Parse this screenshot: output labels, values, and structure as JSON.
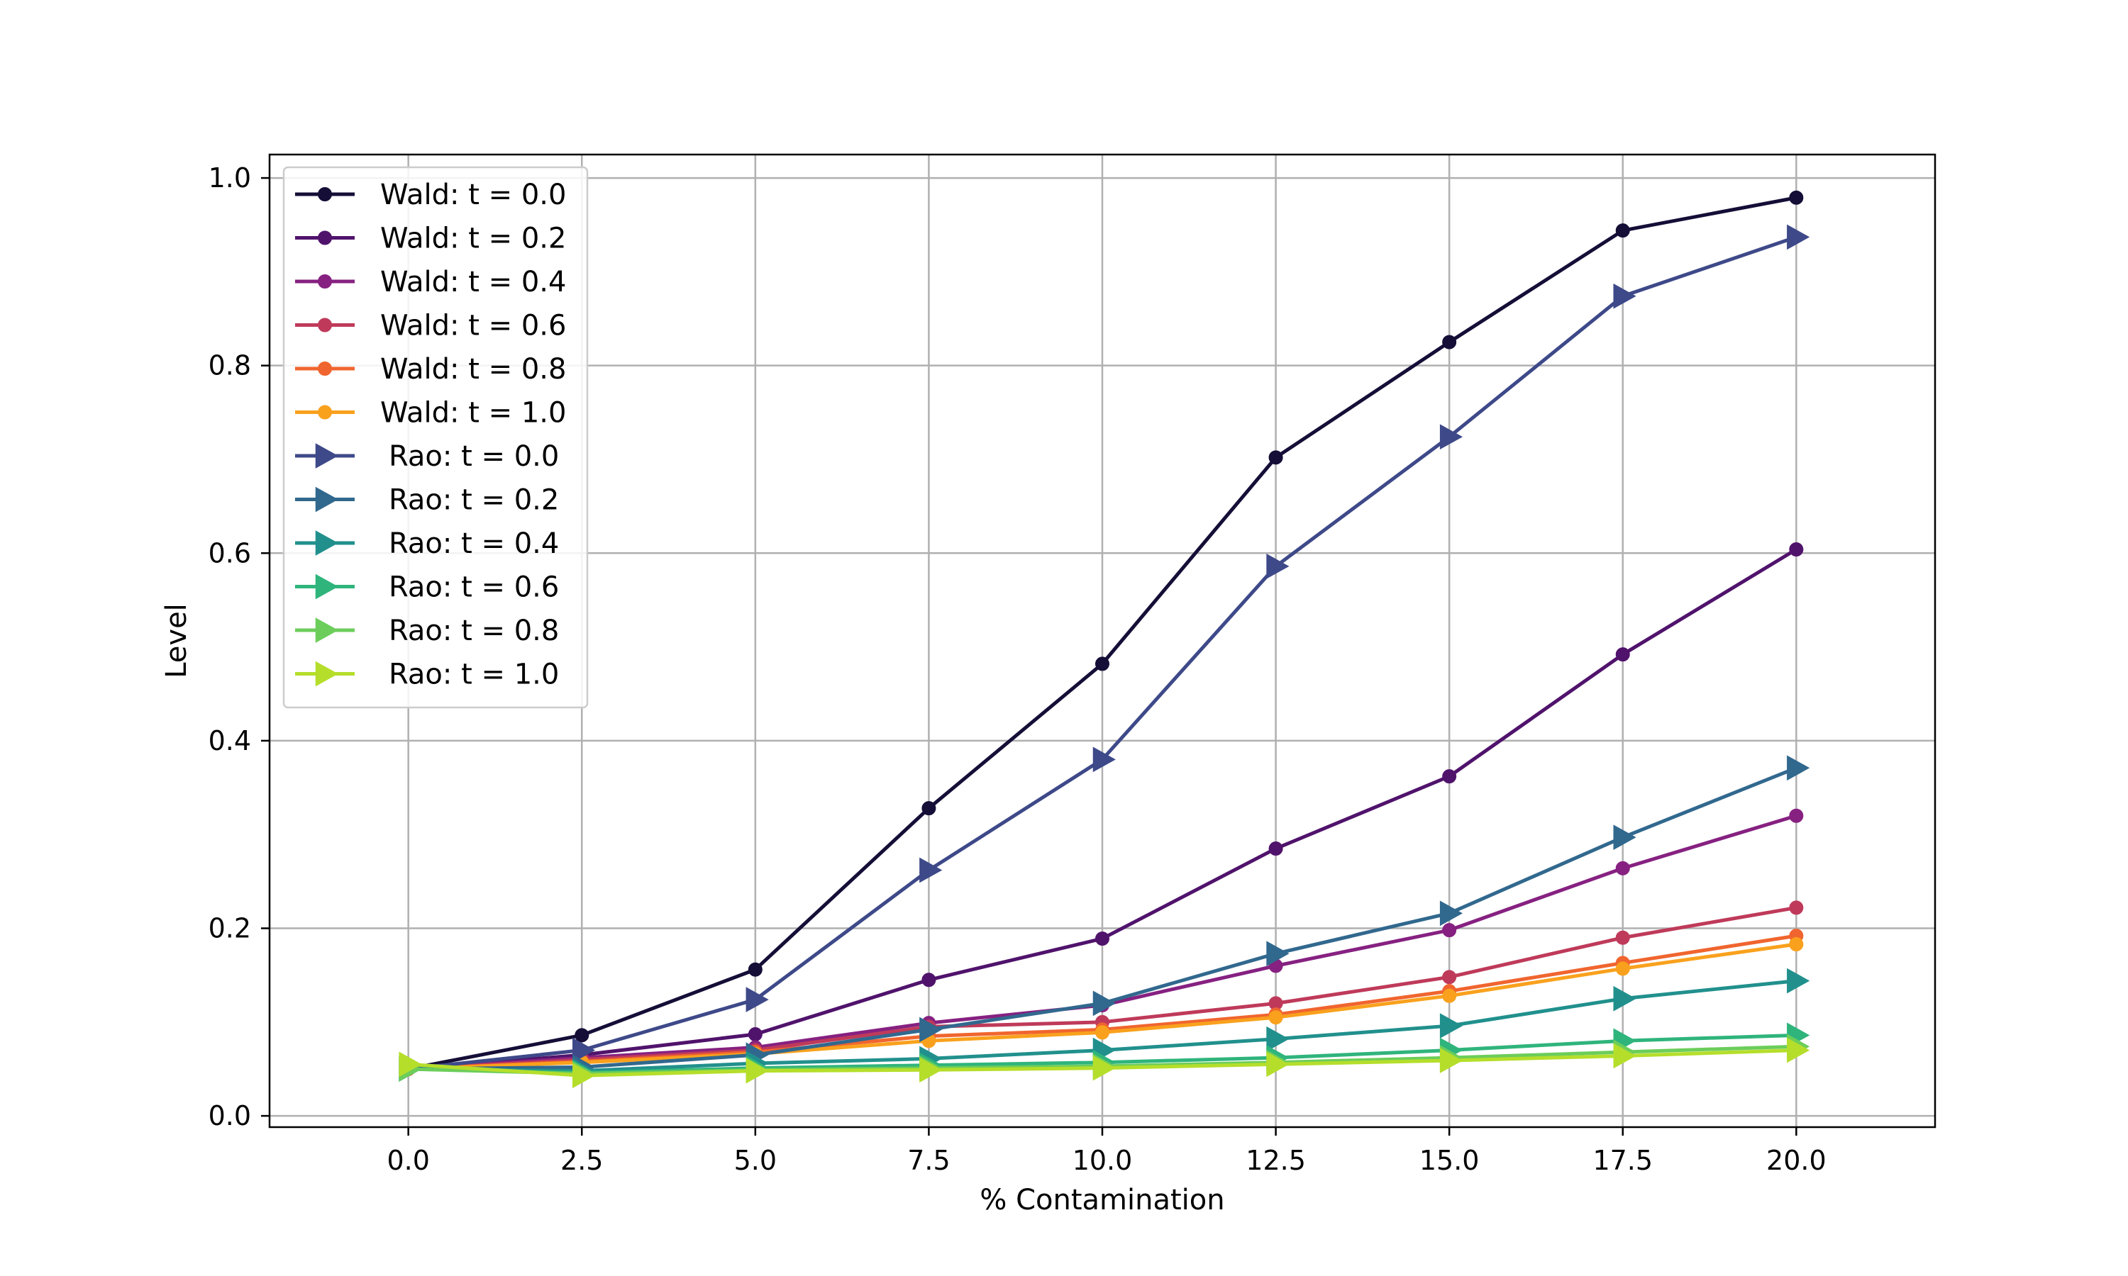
{
  "chart_data": {
    "type": "line",
    "title": "",
    "xlabel": "% Contamination",
    "ylabel": "Level",
    "xlim": [
      -2,
      22
    ],
    "ylim": [
      -0.012,
      1.025
    ],
    "xticks": [
      0.0,
      2.5,
      5.0,
      7.5,
      10.0,
      12.5,
      15.0,
      17.5,
      20.0
    ],
    "xtick_labels": [
      "0.0",
      "2.5",
      "5.0",
      "7.5",
      "10.0",
      "12.5",
      "15.0",
      "17.5",
      "20.0"
    ],
    "yticks": [
      0.0,
      0.2,
      0.4,
      0.6,
      0.8,
      1.0
    ],
    "ytick_labels": [
      "0.0",
      "0.2",
      "0.4",
      "0.6",
      "0.8",
      "1.0"
    ],
    "grid": true,
    "legend_position": "top-left",
    "x": [
      0.0,
      2.5,
      5.0,
      7.5,
      10.0,
      12.5,
      15.0,
      17.5,
      20.0
    ],
    "series": [
      {
        "name": "Wald: t = 0.0",
        "marker": "circle",
        "color": "#150e37",
        "values": [
          0.05,
          0.086,
          0.156,
          0.328,
          0.482,
          0.702,
          0.825,
          0.944,
          0.979
        ]
      },
      {
        "name": "Wald: t = 0.2",
        "marker": "circle",
        "color": "#50136c",
        "values": [
          0.05,
          0.065,
          0.087,
          0.145,
          0.189,
          0.285,
          0.362,
          0.492,
          0.604
        ]
      },
      {
        "name": "Wald: t = 0.4",
        "marker": "circle",
        "color": "#862181",
        "values": [
          0.05,
          0.062,
          0.073,
          0.099,
          0.118,
          0.16,
          0.198,
          0.264,
          0.32
        ]
      },
      {
        "name": "Wald: t = 0.6",
        "marker": "circle",
        "color": "#bf3a5a",
        "values": [
          0.05,
          0.06,
          0.07,
          0.095,
          0.1,
          0.12,
          0.148,
          0.19,
          0.222
        ]
      },
      {
        "name": "Wald: t = 0.8",
        "marker": "circle",
        "color": "#f0652f",
        "values": [
          0.05,
          0.058,
          0.068,
          0.085,
          0.092,
          0.108,
          0.133,
          0.163,
          0.192
        ]
      },
      {
        "name": "Wald: t = 1.0",
        "marker": "circle",
        "color": "#f9a11d",
        "values": [
          0.05,
          0.057,
          0.066,
          0.08,
          0.089,
          0.105,
          0.128,
          0.157,
          0.183
        ]
      },
      {
        "name": "Rao: t = 0.0",
        "marker": "triangle-right",
        "color": "#3e4989",
        "values": [
          0.05,
          0.07,
          0.124,
          0.262,
          0.38,
          0.586,
          0.724,
          0.874,
          0.937
        ]
      },
      {
        "name": "Rao: t = 0.2",
        "marker": "triangle-right",
        "color": "#31688e",
        "values": [
          0.05,
          0.052,
          0.065,
          0.092,
          0.12,
          0.173,
          0.216,
          0.297,
          0.371
        ]
      },
      {
        "name": "Rao: t = 0.4",
        "marker": "triangle-right",
        "color": "#21908d",
        "values": [
          0.05,
          0.048,
          0.056,
          0.061,
          0.07,
          0.082,
          0.096,
          0.125,
          0.144
        ]
      },
      {
        "name": "Rao: t = 0.6",
        "marker": "triangle-right",
        "color": "#2fb47c",
        "values": [
          0.05,
          0.046,
          0.051,
          0.054,
          0.057,
          0.062,
          0.07,
          0.08,
          0.086
        ]
      },
      {
        "name": "Rao: t = 0.8",
        "marker": "triangle-right",
        "color": "#6ccd5a",
        "values": [
          0.05,
          0.045,
          0.049,
          0.051,
          0.053,
          0.057,
          0.062,
          0.068,
          0.074
        ]
      },
      {
        "name": "Rao: t = 1.0",
        "marker": "triangle-right",
        "color": "#b5de2b",
        "values": [
          0.055,
          0.043,
          0.048,
          0.049,
          0.051,
          0.055,
          0.059,
          0.064,
          0.07
        ]
      }
    ]
  }
}
